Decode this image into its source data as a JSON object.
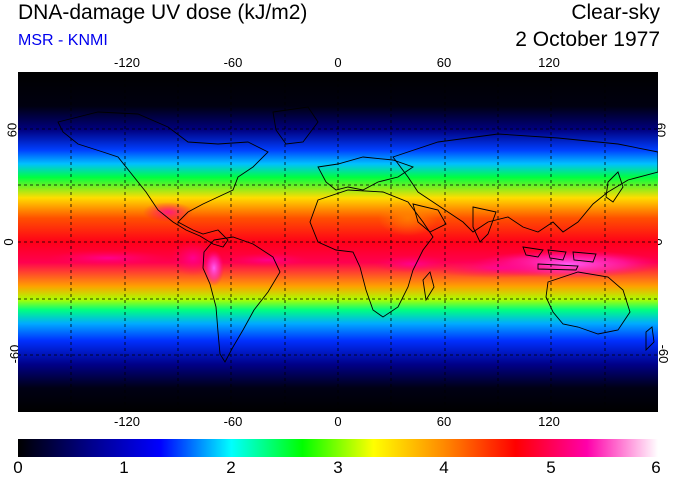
{
  "header": {
    "title": "DNA-damage UV dose (kJ/m2)",
    "source": "MSR - KNMI",
    "sky_condition": "Clear-sky",
    "date": "2 October 1977"
  },
  "axes": {
    "longitude_ticks": [
      "-120",
      "-60",
      "0",
      "60",
      "120"
    ],
    "latitude_ticks": [
      "60",
      "0",
      "-60"
    ]
  },
  "colorbar": {
    "ticks": [
      "0",
      "1",
      "2",
      "3",
      "4",
      "5",
      "6"
    ],
    "colors": [
      "#000000",
      "#000088",
      "#0000ff",
      "#00ffff",
      "#00ff00",
      "#ffff00",
      "#ff8800",
      "#ff0000",
      "#ff00aa",
      "#ffffff"
    ]
  },
  "colors": {
    "subtitle": "#0000ee",
    "coastline": "#000000",
    "grid": "#000000"
  }
}
